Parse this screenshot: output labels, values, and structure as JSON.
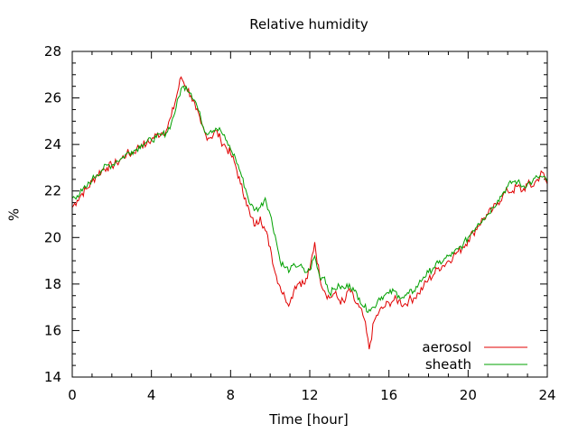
{
  "chart_data": {
    "type": "line",
    "title": "Relative humidity",
    "xlabel": "Time [hour]",
    "ylabel": "%",
    "xlim": [
      0,
      24
    ],
    "ylim": [
      14,
      28
    ],
    "xticks": [
      0,
      4,
      8,
      12,
      16,
      20,
      24
    ],
    "yticks": [
      14,
      16,
      18,
      20,
      22,
      24,
      26,
      28
    ],
    "x_minor_step": 1,
    "y_minor_step": 0.5,
    "grid": false,
    "legend_position": "bottom-right",
    "series": [
      {
        "name": "aerosol",
        "color": "#e00000",
        "x": [
          0,
          0.25,
          0.5,
          0.75,
          1,
          1.25,
          1.5,
          1.75,
          2,
          2.25,
          2.5,
          2.75,
          3,
          3.25,
          3.5,
          3.75,
          4,
          4.25,
          4.5,
          4.75,
          5,
          5.25,
          5.5,
          5.75,
          6,
          6.25,
          6.5,
          6.75,
          7,
          7.25,
          7.5,
          7.75,
          8,
          8.25,
          8.5,
          8.75,
          9,
          9.25,
          9.5,
          9.75,
          10,
          10.25,
          10.5,
          10.75,
          11,
          11.25,
          11.5,
          11.75,
          12,
          12.25,
          12.5,
          12.75,
          13,
          13.25,
          13.5,
          13.75,
          14,
          14.25,
          14.5,
          14.75,
          15,
          15.25,
          15.5,
          15.75,
          16,
          16.25,
          16.5,
          16.75,
          17,
          17.25,
          17.5,
          17.75,
          18,
          18.25,
          18.5,
          18.75,
          19,
          19.25,
          19.5,
          19.75,
          20,
          20.25,
          20.5,
          20.75,
          21,
          21.25,
          21.5,
          21.75,
          22,
          22.25,
          22.5,
          22.75,
          23,
          23.25,
          23.5,
          23.75,
          24
        ],
        "values": [
          21.3,
          21.6,
          21.9,
          22.1,
          22.4,
          22.7,
          22.9,
          23.0,
          23.1,
          23.2,
          23.4,
          23.6,
          23.6,
          23.8,
          24.0,
          24.0,
          24.2,
          24.4,
          24.5,
          24.6,
          25.2,
          26.0,
          26.9,
          26.5,
          26.1,
          25.5,
          24.9,
          24.4,
          24.3,
          24.6,
          24.2,
          23.9,
          23.6,
          23.1,
          22.3,
          21.7,
          20.9,
          20.5,
          20.9,
          20.3,
          19.6,
          18.5,
          17.9,
          17.4,
          17.2,
          17.9,
          18.1,
          18.0,
          18.6,
          19.8,
          18.3,
          17.7,
          17.4,
          17.6,
          17.3,
          17.2,
          17.8,
          17.3,
          17.0,
          16.5,
          15.2,
          16.4,
          16.8,
          17.0,
          17.2,
          17.3,
          17.3,
          17.1,
          17.3,
          17.4,
          17.6,
          17.9,
          18.2,
          18.4,
          18.7,
          18.8,
          19.0,
          19.2,
          19.4,
          19.6,
          19.9,
          20.2,
          20.5,
          20.8,
          21.0,
          21.2,
          21.5,
          21.8,
          22.0,
          22.0,
          22.2,
          22.0,
          22.3,
          22.2,
          22.5,
          22.8,
          22.3
        ],
        "noise": 0.2
      },
      {
        "name": "sheath",
        "color": "#00a000",
        "x": [
          0,
          0.25,
          0.5,
          0.75,
          1,
          1.25,
          1.5,
          1.75,
          2,
          2.25,
          2.5,
          2.75,
          3,
          3.25,
          3.5,
          3.75,
          4,
          4.25,
          4.5,
          4.75,
          5,
          5.25,
          5.5,
          5.75,
          6,
          6.25,
          6.5,
          6.75,
          7,
          7.25,
          7.5,
          7.75,
          8,
          8.25,
          8.5,
          8.75,
          9,
          9.25,
          9.5,
          9.75,
          10,
          10.25,
          10.5,
          10.75,
          11,
          11.25,
          11.5,
          11.75,
          12,
          12.25,
          12.5,
          12.75,
          13,
          13.25,
          13.5,
          13.75,
          14,
          14.25,
          14.5,
          14.75,
          15,
          15.25,
          15.5,
          15.75,
          16,
          16.25,
          16.5,
          16.75,
          17,
          17.25,
          17.5,
          17.75,
          18,
          18.25,
          18.5,
          18.75,
          19,
          19.25,
          19.5,
          19.75,
          20,
          20.25,
          20.5,
          20.75,
          21,
          21.25,
          21.5,
          21.75,
          22,
          22.25,
          22.5,
          22.75,
          23,
          23.25,
          23.5,
          23.75,
          24
        ],
        "values": [
          21.7,
          21.8,
          22.0,
          22.2,
          22.5,
          22.7,
          22.9,
          23.1,
          23.1,
          23.3,
          23.4,
          23.6,
          23.7,
          23.8,
          24.0,
          24.1,
          24.2,
          24.3,
          24.4,
          24.5,
          24.9,
          25.6,
          26.4,
          26.5,
          26.2,
          25.8,
          25.1,
          24.5,
          24.6,
          24.7,
          24.6,
          24.2,
          23.8,
          23.4,
          22.8,
          22.1,
          21.4,
          21.2,
          21.3,
          21.7,
          21.0,
          20.1,
          19.0,
          18.7,
          18.6,
          18.8,
          18.8,
          18.5,
          18.6,
          19.2,
          18.3,
          18.3,
          17.6,
          17.8,
          17.9,
          17.8,
          18.0,
          17.7,
          17.4,
          17.0,
          16.9,
          17.0,
          17.4,
          17.5,
          17.6,
          17.7,
          17.5,
          17.4,
          17.6,
          17.7,
          18.0,
          18.3,
          18.5,
          18.7,
          18.9,
          19.0,
          19.2,
          19.3,
          19.5,
          19.7,
          20.0,
          20.3,
          20.6,
          20.8,
          21.0,
          21.3,
          21.6,
          21.9,
          22.2,
          22.4,
          22.4,
          22.2,
          22.3,
          22.4,
          22.6,
          22.6,
          22.4
        ],
        "noise": 0.15
      }
    ]
  }
}
